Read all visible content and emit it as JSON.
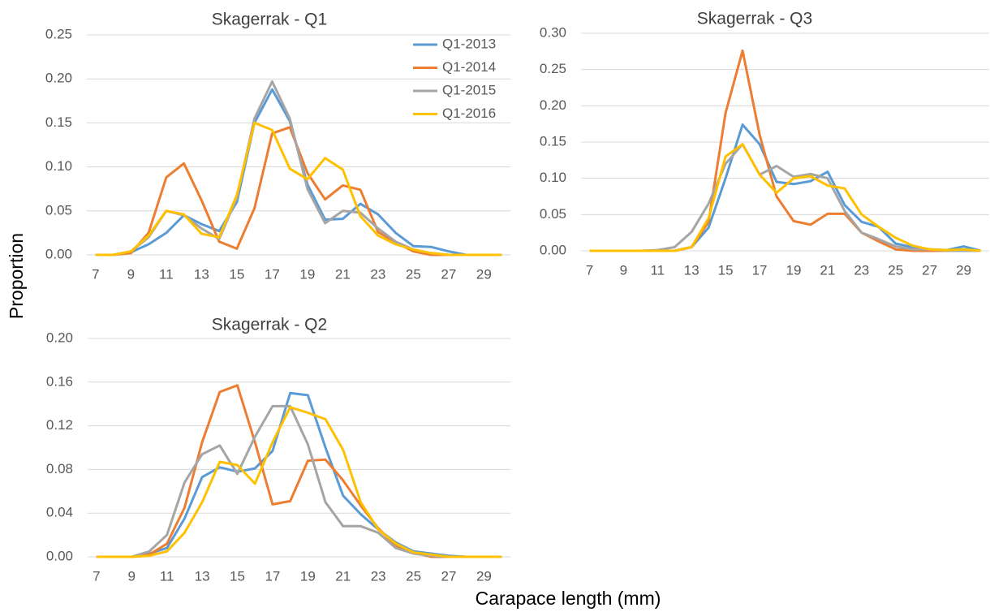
{
  "ylabel": "Proportion",
  "xlabel": "Carapace length (mm)",
  "chart_data": [
    {
      "type": "line",
      "title": "Skagerrak - Q1",
      "x": [
        7,
        8,
        9,
        10,
        11,
        12,
        13,
        14,
        15,
        16,
        17,
        18,
        19,
        20,
        21,
        22,
        23,
        24,
        25,
        26,
        27,
        28,
        29,
        30
      ],
      "xlim": [
        6.5,
        30.5
      ],
      "xticks": [
        7,
        9,
        11,
        13,
        15,
        17,
        19,
        21,
        23,
        25,
        27,
        29
      ],
      "ylim": [
        0,
        0.25
      ],
      "yticks": [
        {
          "value": 0,
          "label": "0.00"
        },
        0.05,
        {
          "value": 0.1,
          "label": "0.10"
        },
        0.15,
        {
          "value": 0.2,
          "label": "0.20"
        },
        0.25
      ],
      "grid": true,
      "legend": "upper right",
      "series": [
        {
          "name": "Q1-2013",
          "color": "#5b9bd5",
          "values": [
            0,
            0,
            0.003,
            0.012,
            0.025,
            0.045,
            0.035,
            0.027,
            0.06,
            0.15,
            0.188,
            0.152,
            0.08,
            0.04,
            0.041,
            0.058,
            0.046,
            0.025,
            0.01,
            0.009,
            0.004,
            0,
            0,
            0
          ]
        },
        {
          "name": "Q1-2014",
          "color": "#ed7d31",
          "values": [
            0,
            0,
            0.002,
            0.025,
            0.088,
            0.104,
            0.062,
            0.015,
            0.007,
            0.053,
            0.138,
            0.145,
            0.093,
            0.063,
            0.079,
            0.074,
            0.026,
            0.014,
            0.004,
            0,
            0,
            0,
            0,
            0
          ]
        },
        {
          "name": "Q1-2015",
          "color": "#a5a5a5",
          "values": [
            0,
            0,
            0.004,
            0.02,
            0.05,
            0.045,
            0.03,
            0.018,
            0.065,
            0.155,
            0.197,
            0.155,
            0.075,
            0.036,
            0.05,
            0.048,
            0.03,
            0.015,
            0.006,
            0.002,
            0,
            0,
            0,
            0
          ]
        },
        {
          "name": "Q1-2016",
          "color": "#ffc000",
          "values": [
            0,
            0,
            0.004,
            0.022,
            0.05,
            0.046,
            0.024,
            0.02,
            0.068,
            0.15,
            0.142,
            0.098,
            0.086,
            0.11,
            0.097,
            0.044,
            0.022,
            0.012,
            0.006,
            0.002,
            0,
            0,
            0,
            0
          ]
        }
      ]
    },
    {
      "type": "line",
      "title": "Skagerrak - Q3",
      "x": [
        7,
        8,
        9,
        10,
        11,
        12,
        13,
        14,
        15,
        16,
        17,
        18,
        19,
        20,
        21,
        22,
        23,
        24,
        25,
        26,
        27,
        28,
        29,
        30
      ],
      "xlim": [
        6.5,
        30.5
      ],
      "xticks": [
        7,
        9,
        11,
        13,
        15,
        17,
        19,
        21,
        23,
        25,
        27,
        29
      ],
      "ylim": [
        0,
        0.3
      ],
      "yticks": [
        {
          "value": 0,
          "label": "0.00"
        },
        0.05,
        {
          "value": 0.1,
          "label": "0.10"
        },
        0.15,
        {
          "value": 0.2,
          "label": "0.20"
        },
        0.25,
        {
          "value": 0.3,
          "label": "0.30"
        }
      ],
      "grid": true,
      "series": [
        {
          "color": "#5b9bd5",
          "values": [
            0,
            0,
            0,
            0,
            0,
            0,
            0.005,
            0.032,
            0.1,
            0.174,
            0.147,
            0.095,
            0.092,
            0.096,
            0.109,
            0.063,
            0.04,
            0.033,
            0.01,
            0.005,
            0.002,
            0.001,
            0.006,
            0
          ]
        },
        {
          "color": "#ed7d31",
          "values": [
            0,
            0,
            0,
            0,
            0,
            0,
            0.005,
            0.04,
            0.19,
            0.276,
            0.16,
            0.075,
            0.041,
            0.036,
            0.051,
            0.051,
            0.025,
            0.013,
            0.002,
            0,
            0,
            0,
            0,
            0
          ]
        },
        {
          "color": "#a5a5a5",
          "values": [
            0,
            0,
            0,
            0,
            0.001,
            0.005,
            0.026,
            0.065,
            0.12,
            0.147,
            0.105,
            0.117,
            0.102,
            0.106,
            0.1,
            0.055,
            0.025,
            0.016,
            0.006,
            0.002,
            0.002,
            0,
            0,
            0
          ]
        },
        {
          "color": "#ffc000",
          "values": [
            0,
            0,
            0,
            0,
            0,
            0,
            0.005,
            0.045,
            0.13,
            0.147,
            0.105,
            0.08,
            0.1,
            0.103,
            0.09,
            0.086,
            0.05,
            0.033,
            0.018,
            0.007,
            0.002,
            0.001,
            0.002,
            0
          ]
        }
      ]
    },
    {
      "type": "line",
      "title": "Skagerrak - Q2",
      "x": [
        7,
        8,
        9,
        10,
        11,
        12,
        13,
        14,
        15,
        16,
        17,
        18,
        19,
        20,
        21,
        22,
        23,
        24,
        25,
        26,
        27,
        28,
        29,
        30
      ],
      "xlim": [
        6.5,
        30.5
      ],
      "xticks": [
        7,
        9,
        11,
        13,
        15,
        17,
        19,
        21,
        23,
        25,
        27,
        29
      ],
      "ylim": [
        0,
        0.2
      ],
      "yticks": [
        {
          "value": 0,
          "label": "0.00"
        },
        0.04,
        0.08,
        0.12,
        0.16,
        {
          "value": 0.2,
          "label": "0.20"
        }
      ],
      "grid": true,
      "series": [
        {
          "color": "#5b9bd5",
          "values": [
            0,
            0,
            0,
            0.003,
            0.008,
            0.035,
            0.073,
            0.082,
            0.078,
            0.081,
            0.097,
            0.15,
            0.148,
            0.1,
            0.056,
            0.039,
            0.025,
            0.013,
            0.005,
            0.003,
            0.001,
            0,
            0,
            0
          ]
        },
        {
          "color": "#ed7d31",
          "values": [
            0,
            0,
            0,
            0.002,
            0.012,
            0.045,
            0.105,
            0.151,
            0.157,
            0.105,
            0.048,
            0.051,
            0.088,
            0.089,
            0.07,
            0.047,
            0.026,
            0.01,
            0.004,
            0,
            0,
            0,
            0,
            0
          ]
        },
        {
          "color": "#a5a5a5",
          "values": [
            0,
            0,
            0,
            0.005,
            0.02,
            0.068,
            0.094,
            0.102,
            0.076,
            0.11,
            0.138,
            0.138,
            0.103,
            0.05,
            0.028,
            0.028,
            0.022,
            0.008,
            0.003,
            0.001,
            0,
            0,
            0,
            0
          ]
        },
        {
          "color": "#ffc000",
          "values": [
            0,
            0,
            0,
            0.001,
            0.005,
            0.022,
            0.05,
            0.087,
            0.084,
            0.067,
            0.105,
            0.137,
            0.132,
            0.126,
            0.098,
            0.05,
            0.025,
            0.012,
            0.004,
            0.002,
            0,
            0,
            0,
            0
          ]
        }
      ]
    }
  ]
}
